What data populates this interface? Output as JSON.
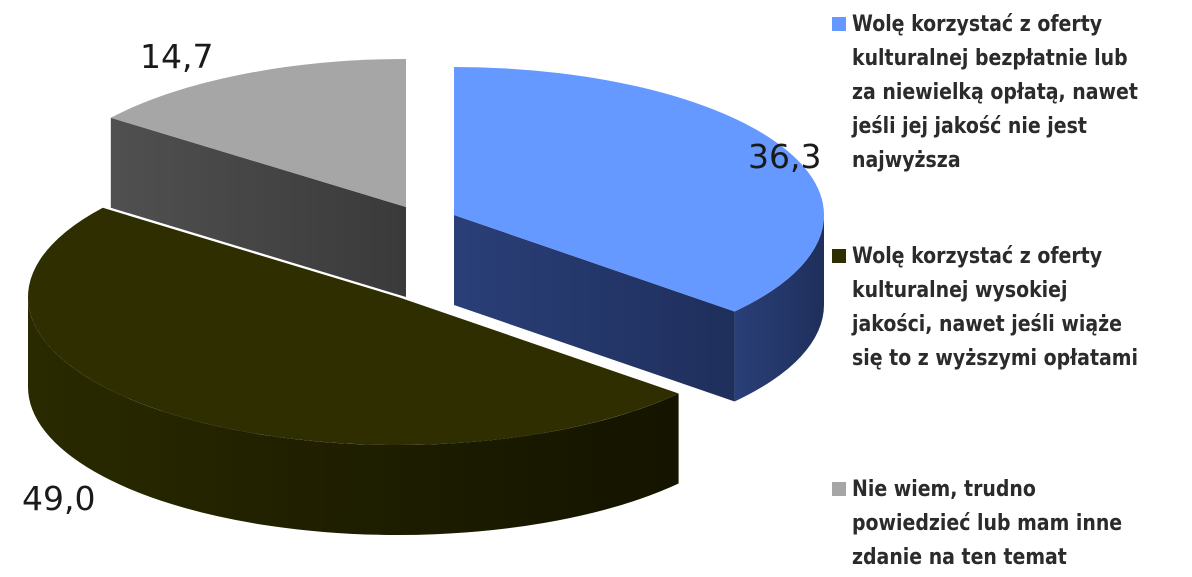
{
  "chart_data": {
    "type": "pie",
    "title": "",
    "style": "3d-exploded",
    "legend_position": "right",
    "series": [
      {
        "categories": [
          "Wolę korzystać z oferty kulturalnej bezpłatnie lub za niewielką opłatą, nawet jeśli jej jakość nie jest najwyższa",
          "Wolę korzystać z oferty kulturalnej wysokiej jakości, nawet jeśli wiąże się to z wyższymi opłatami",
          "Nie wiem, trudno powiedzieć lub mam inne zdanie na ten temat"
        ],
        "values": [
          36.3,
          49.0,
          14.7
        ]
      }
    ],
    "value_labels": [
      "36,3",
      "49,0",
      "14,7"
    ],
    "colors": {
      "slice_1_top": "#6699ff",
      "slice_1_side": "#25386b",
      "slice_2_top": "#2e2e00",
      "slice_2_side": "#1c1c00",
      "slice_3_top": "#a6a6a6",
      "slice_3_side": "#484848"
    }
  },
  "legend": {
    "items": [
      {
        "label": "Wolę korzystać z oferty kulturalnej bezpłatnie lub za niewielką opłatą, nawet jeśli jej jakość nie jest najwyższa",
        "color": "#6699ff"
      },
      {
        "label": "Wolę korzystać z oferty kulturalnej wysokiej jakości, nawet jeśli wiąże się to z wyższymi opłatami",
        "color": "#2e2e00"
      },
      {
        "label": "Nie wiem, trudno powiedzieć lub mam inne zdanie na ten temat",
        "color": "#a6a6a6"
      }
    ]
  }
}
